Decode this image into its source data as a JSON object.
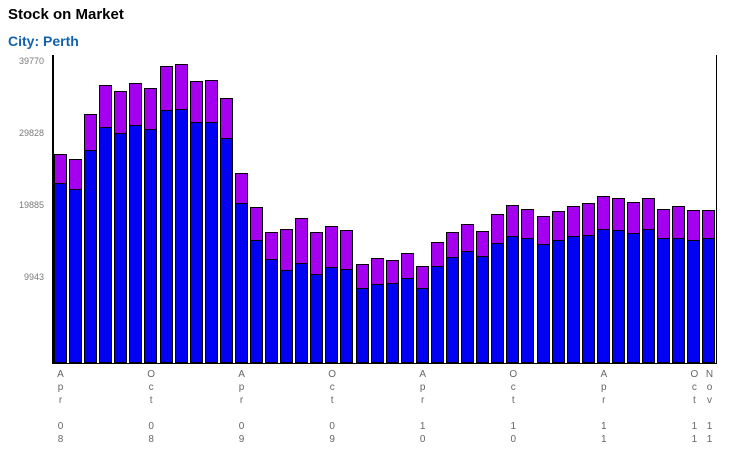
{
  "header": {
    "title": "Stock on Market",
    "subtitle": "City: Perth"
  },
  "colors": {
    "bar_blue": "#0202F2",
    "bar_purple": "#A400EF",
    "bar_border": "#000000",
    "title_black": "#000000",
    "subtitle_blue": "#1262AE",
    "y_label_gray": "#7A7A7A",
    "x_label_gray": "#666666"
  },
  "chart_data": {
    "type": "bar",
    "stacked": true,
    "title": "Stock on Market",
    "subtitle": "City: Perth",
    "xlabel": "",
    "ylabel": "",
    "grid": false,
    "legend_position": "none",
    "ylim": [
      -1936,
      40600
    ],
    "y_ticks": [
      9943,
      19885,
      29828,
      39770
    ],
    "y_tick_labels": [
      "9943",
      "19885",
      "29828",
      "39770"
    ],
    "x_tick_positions": [
      0,
      6,
      12,
      18,
      24,
      30,
      36,
      42,
      43
    ],
    "x_tick_labels": [
      "Apr 08",
      "Oct 08",
      "Apr 09",
      "Oct 09",
      "Apr 10",
      "Oct 10",
      "Apr 11",
      "Oct 11",
      "Nov 11"
    ],
    "categories": [
      "Apr 08",
      "May 08",
      "Jun 08",
      "Jul 08",
      "Aug 08",
      "Sep 08",
      "Oct 08",
      "Nov 08",
      "Dec 08",
      "Jan 09",
      "Feb 09",
      "Mar 09",
      "Apr 09",
      "May 09",
      "Jun 09",
      "Jul 09",
      "Aug 09",
      "Sep 09",
      "Oct 09",
      "Nov 09",
      "Dec 09",
      "Jan 10",
      "Feb 10",
      "Mar 10",
      "Apr 10",
      "May 10",
      "Jun 10",
      "Jul 10",
      "Aug 10",
      "Sep 10",
      "Oct 10",
      "Nov 10",
      "Dec 10",
      "Jan 11",
      "Feb 11",
      "Mar 11",
      "Apr 11",
      "May 11",
      "Jun 11",
      "Jul 11",
      "Aug 11",
      "Sep 11",
      "Oct 11",
      "Nov 11"
    ],
    "series": [
      {
        "name": "blue-segment",
        "color": "#0202F2",
        "values": [
          22900,
          22100,
          27500,
          30600,
          29900,
          30900,
          30400,
          33000,
          33200,
          31300,
          31300,
          29100,
          20200,
          15100,
          12400,
          10900,
          11900,
          10400,
          11300,
          11000,
          8400,
          9000,
          9100,
          9850,
          8400,
          11500,
          12700,
          13500,
          12800,
          14700,
          15600,
          15400,
          14500,
          15100,
          15600,
          15700,
          16600,
          16400,
          16000,
          16600,
          15300,
          15400,
          15100,
          15300
        ]
      },
      {
        "name": "purple-segment",
        "color": "#A400EF",
        "values": [
          4100,
          4200,
          5000,
          5800,
          5700,
          5900,
          5600,
          6100,
          6200,
          5700,
          5900,
          5500,
          4050,
          4500,
          3800,
          5700,
          6200,
          5700,
          5700,
          5400,
          3300,
          3600,
          3200,
          3450,
          3000,
          3300,
          3400,
          3700,
          3500,
          4000,
          4300,
          4000,
          3900,
          4000,
          4200,
          4400,
          4500,
          4500,
          4300,
          4300,
          4100,
          4350,
          4100,
          3900
        ]
      }
    ]
  }
}
